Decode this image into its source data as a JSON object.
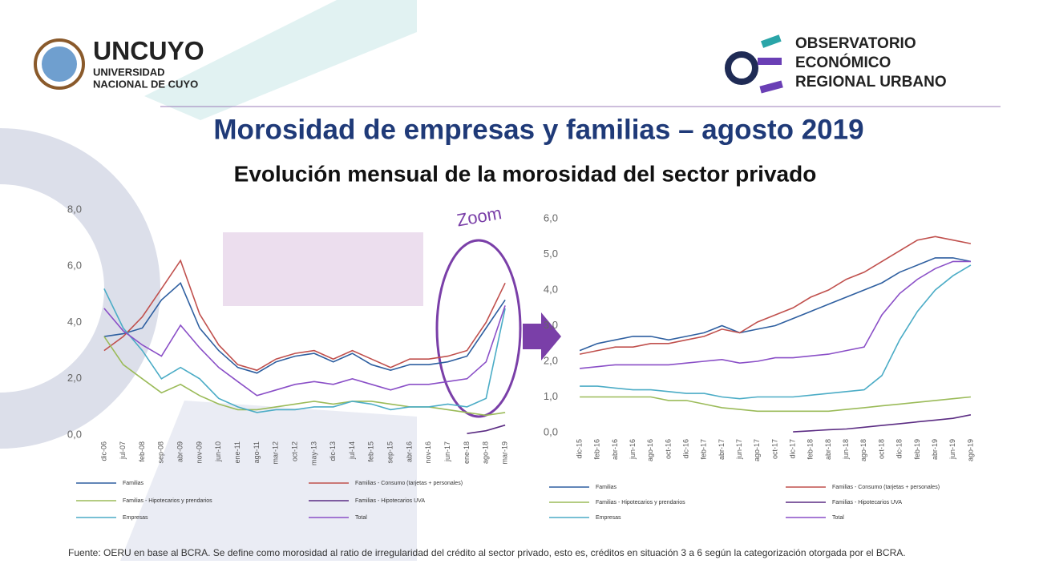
{
  "header": {
    "left_logo": {
      "name": "UNCUYO",
      "line1": "UNIVERSIDAD",
      "line2": "NACIONAL DE CUYO"
    },
    "right_logo": {
      "line1": "OBSERVATORIO",
      "line2": "ECONÓMICO",
      "line3": "REGIONAL URBANO"
    }
  },
  "title": "Morosidad de empresas y familias – agosto 2019",
  "subtitle": "Evolución mensual de la morosidad del sector privado",
  "footnote": "Fuente: OERU en base al BCRA. Se define como morosidad al ratio de irregularidad del crédito al sector privado, esto es, créditos en situación 3 a 6 según la categorización otorgada por el BCRA.",
  "chart_data": [
    {
      "type": "line",
      "annotation": "Zoom",
      "grid": false,
      "categories": [
        "dic-06",
        "jul-07",
        "feb-08",
        "sep-08",
        "abr-09",
        "nov-09",
        "jun-10",
        "ene-11",
        "ago-11",
        "mar-12",
        "oct-12",
        "may-13",
        "dic-13",
        "jul-14",
        "feb-15",
        "sep-15",
        "abr-16",
        "nov-16",
        "jun-17",
        "ene-18",
        "ago-18",
        "mar-19"
      ],
      "ylim": [
        0,
        8
      ],
      "yticks": [
        {
          "value": 0,
          "label": "0,0"
        },
        {
          "value": 2,
          "label": "2,0"
        },
        {
          "value": 4,
          "label": "4,0"
        },
        {
          "value": 6,
          "label": "6,0"
        },
        {
          "value": 8,
          "label": "8,0"
        }
      ],
      "series": [
        {
          "name": "Familias",
          "color": "#2e5fa0",
          "values": [
            3.5,
            3.6,
            3.8,
            4.8,
            5.4,
            3.8,
            3.0,
            2.4,
            2.2,
            2.6,
            2.8,
            2.9,
            2.6,
            2.9,
            2.5,
            2.3,
            2.5,
            2.5,
            2.6,
            2.8,
            3.8,
            4.8
          ]
        },
        {
          "name": "Familias - Consumo (tarjetas + personales)",
          "color": "#c0504d",
          "values": [
            3.0,
            3.5,
            4.2,
            5.2,
            6.2,
            4.3,
            3.2,
            2.5,
            2.3,
            2.7,
            2.9,
            3.0,
            2.7,
            3.0,
            2.7,
            2.4,
            2.7,
            2.7,
            2.8,
            3.0,
            4.0,
            5.4
          ]
        },
        {
          "name": "Familias - Hipotecarios y prendarios",
          "color": "#9bbb59",
          "values": [
            3.5,
            2.5,
            2.0,
            1.5,
            1.8,
            1.4,
            1.1,
            0.9,
            0.9,
            1.0,
            1.1,
            1.2,
            1.1,
            1.2,
            1.2,
            1.1,
            1.0,
            1.0,
            0.9,
            0.8,
            0.7,
            0.8
          ]
        },
        {
          "name": "Familias - Hipotecarios UVA",
          "color": "#5b2c83",
          "values": [
            null,
            null,
            null,
            null,
            null,
            null,
            null,
            null,
            null,
            null,
            null,
            null,
            null,
            null,
            null,
            null,
            null,
            null,
            null,
            0.05,
            0.15,
            0.35
          ]
        },
        {
          "name": "Empresas",
          "color": "#4bacc6",
          "values": [
            5.2,
            3.8,
            3.0,
            2.0,
            2.4,
            2.0,
            1.3,
            1.0,
            0.8,
            0.9,
            0.9,
            1.0,
            1.0,
            1.2,
            1.1,
            0.9,
            1.0,
            1.0,
            1.1,
            1.0,
            1.3,
            4.5
          ]
        },
        {
          "name": "Total",
          "color": "#8a4fc7",
          "values": [
            4.5,
            3.7,
            3.2,
            2.8,
            3.9,
            3.1,
            2.4,
            1.9,
            1.4,
            1.6,
            1.8,
            1.9,
            1.8,
            2.0,
            1.8,
            1.6,
            1.8,
            1.8,
            1.9,
            2.0,
            2.6,
            4.6
          ]
        }
      ]
    },
    {
      "type": "line",
      "grid": false,
      "categories": [
        "dic-15",
        "feb-16",
        "abr-16",
        "jun-16",
        "ago-16",
        "oct-16",
        "dic-16",
        "feb-17",
        "abr-17",
        "jun-17",
        "ago-17",
        "oct-17",
        "dic-17",
        "feb-18",
        "abr-18",
        "jun-18",
        "ago-18",
        "oct-18",
        "dic-18",
        "feb-19",
        "abr-19",
        "jun-19",
        "ago-19"
      ],
      "ylim": [
        0,
        6
      ],
      "yticks": [
        {
          "value": 0,
          "label": "0,0"
        },
        {
          "value": 1,
          "label": "1,0"
        },
        {
          "value": 2,
          "label": "2,0"
        },
        {
          "value": 3,
          "label": "3,0"
        },
        {
          "value": 4,
          "label": "4,0"
        },
        {
          "value": 5,
          "label": "5,0"
        },
        {
          "value": 6,
          "label": "6,0"
        }
      ],
      "series": [
        {
          "name": "Familias",
          "color": "#2e5fa0",
          "values": [
            2.3,
            2.5,
            2.6,
            2.7,
            2.7,
            2.6,
            2.7,
            2.8,
            3.0,
            2.8,
            2.9,
            3.0,
            3.2,
            3.4,
            3.6,
            3.8,
            4.0,
            4.2,
            4.5,
            4.7,
            4.9,
            4.9,
            4.8
          ]
        },
        {
          "name": "Familias - Consumo (tarjetas + personales)",
          "color": "#c0504d",
          "values": [
            2.2,
            2.3,
            2.4,
            2.4,
            2.5,
            2.5,
            2.6,
            2.7,
            2.9,
            2.8,
            3.1,
            3.3,
            3.5,
            3.8,
            4.0,
            4.3,
            4.5,
            4.8,
            5.1,
            5.4,
            5.5,
            5.4,
            5.3
          ]
        },
        {
          "name": "Familias - Hipotecarios y prendarios",
          "color": "#9bbb59",
          "values": [
            1.0,
            1.0,
            1.0,
            1.0,
            1.0,
            0.9,
            0.9,
            0.8,
            0.7,
            0.65,
            0.6,
            0.6,
            0.6,
            0.6,
            0.6,
            0.65,
            0.7,
            0.75,
            0.8,
            0.85,
            0.9,
            0.95,
            1.0
          ]
        },
        {
          "name": "Familias - Hipotecarios UVA",
          "color": "#5b2c83",
          "values": [
            null,
            null,
            null,
            null,
            null,
            null,
            null,
            null,
            null,
            null,
            null,
            null,
            0.02,
            0.05,
            0.08,
            0.1,
            0.15,
            0.2,
            0.25,
            0.3,
            0.35,
            0.4,
            0.5
          ]
        },
        {
          "name": "Empresas",
          "color": "#4bacc6",
          "values": [
            1.3,
            1.3,
            1.25,
            1.2,
            1.2,
            1.15,
            1.1,
            1.1,
            1.0,
            0.95,
            1.0,
            1.0,
            1.0,
            1.05,
            1.1,
            1.15,
            1.2,
            1.6,
            2.6,
            3.4,
            4.0,
            4.4,
            4.7
          ]
        },
        {
          "name": "Total",
          "color": "#8a4fc7",
          "values": [
            1.8,
            1.85,
            1.9,
            1.9,
            1.9,
            1.9,
            1.95,
            2.0,
            2.05,
            1.95,
            2.0,
            2.1,
            2.1,
            2.15,
            2.2,
            2.3,
            2.4,
            3.3,
            3.9,
            4.3,
            4.6,
            4.8,
            4.8
          ]
        }
      ]
    }
  ]
}
